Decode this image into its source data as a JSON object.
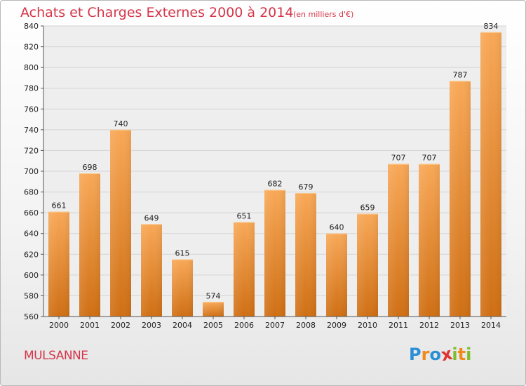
{
  "chart_data": {
    "type": "bar",
    "title": "Achats et Charges Externes 2000 à 2014",
    "subtitle": "(en milliers d'€)",
    "categories": [
      "2000",
      "2001",
      "2002",
      "2003",
      "2004",
      "2005",
      "2006",
      "2007",
      "2008",
      "2009",
      "2010",
      "2011",
      "2012",
      "2013",
      "2014"
    ],
    "values": [
      661,
      698,
      740,
      649,
      615,
      574,
      651,
      682,
      679,
      640,
      659,
      707,
      707,
      787,
      834
    ],
    "ylim": [
      560,
      840
    ],
    "yticks": [
      560,
      580,
      600,
      620,
      640,
      660,
      680,
      700,
      720,
      740,
      760,
      780,
      800,
      820,
      840
    ],
    "grid": true,
    "bar_color": "#f39a3e"
  },
  "footer": {
    "city": "MULSANNE",
    "brand_letters": [
      "P",
      "r",
      "o",
      "x",
      "i",
      "t",
      "i"
    ],
    "brand_colors": [
      "#2a8fd6",
      "#f08a1c",
      "#2a8fd6",
      "#e0322f",
      "#7bbf2a",
      "#f08a1c",
      "#7bbf2a"
    ]
  }
}
